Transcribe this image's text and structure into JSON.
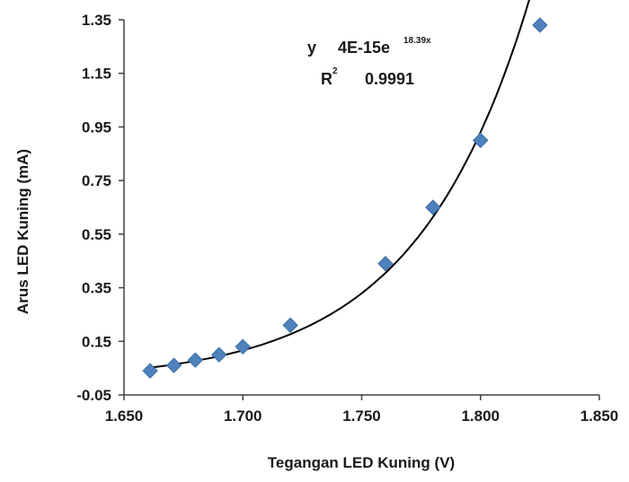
{
  "chart_data": {
    "type": "scatter",
    "xlabel": "Tegangan LED Kuning (V)",
    "ylabel": "Arus LED Kuning (mA)",
    "xlim": [
      1.65,
      1.85
    ],
    "ylim": [
      -0.05,
      1.35
    ],
    "x_ticks": [
      "1.650",
      "1.700",
      "1.750",
      "1.800",
      "1.850"
    ],
    "y_ticks": [
      "-0.05",
      "0.15",
      "0.35",
      "0.55",
      "0.75",
      "0.95",
      "1.15",
      "1.35"
    ],
    "series": [
      {
        "marker": "diamond",
        "color": "#4f81bd",
        "x": [
          1.661,
          1.671,
          1.68,
          1.69,
          1.7,
          1.72,
          1.76,
          1.78,
          1.8,
          1.825
        ],
        "y": [
          0.04,
          0.06,
          0.08,
          0.1,
          0.13,
          0.21,
          0.44,
          0.65,
          0.9,
          1.33
        ]
      }
    ],
    "trendline": {
      "type": "exponential",
      "color": "#000000",
      "equation_prefix": "y",
      "equation_body": "4E-15e",
      "equation_exponent": "18.39x",
      "r2_label": "R",
      "r2_sup": "2",
      "r2_value": "0.9991"
    },
    "grid": false,
    "legend": "none"
  }
}
